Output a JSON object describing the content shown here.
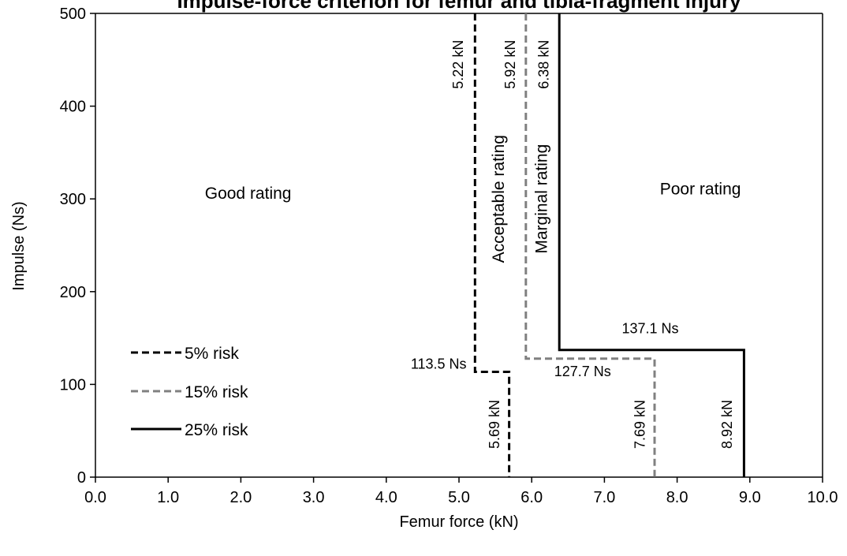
{
  "chart_data": {
    "type": "line",
    "title": "Impulse-force criterion for femur and tibia-fragment injury",
    "xlabel": "Femur force (kN)",
    "ylabel": "Impulse (Ns)",
    "xlim": [
      0,
      10
    ],
    "ylim": [
      0,
      500
    ],
    "xticks": [
      0,
      1,
      2,
      3,
      4,
      5,
      6,
      7,
      8,
      9,
      10
    ],
    "xtick_labels": [
      "0.0",
      "1.0",
      "2.0",
      "3.0",
      "4.0",
      "5.0",
      "6.0",
      "7.0",
      "8.0",
      "9.0",
      "10.0"
    ],
    "yticks": [
      0,
      100,
      200,
      300,
      400,
      500
    ],
    "ytick_labels": [
      "0",
      "100",
      "200",
      "300",
      "400",
      "500"
    ],
    "grid": false,
    "legend_position": "lower-left",
    "series": [
      {
        "name": "5% risk",
        "style": "dashed",
        "color": "#000000",
        "points": [
          [
            5.22,
            500
          ],
          [
            5.22,
            113.5
          ],
          [
            5.69,
            113.5
          ],
          [
            5.69,
            0
          ]
        ]
      },
      {
        "name": "15% risk",
        "style": "dashed",
        "color": "#808080",
        "points": [
          [
            5.92,
            500
          ],
          [
            5.92,
            127.7
          ],
          [
            7.69,
            127.7
          ],
          [
            7.69,
            0
          ]
        ]
      },
      {
        "name": "25% risk",
        "style": "solid",
        "color": "#000000",
        "points": [
          [
            6.38,
            500
          ],
          [
            6.38,
            137.1
          ],
          [
            8.92,
            137.1
          ],
          [
            8.92,
            0
          ]
        ]
      }
    ],
    "annotations": [
      {
        "key": "a_522",
        "text": "5.22 kN",
        "x": 5.0,
        "y": 445,
        "rotate": true
      },
      {
        "key": "a_592",
        "text": "5.92 kN",
        "x": 5.72,
        "y": 445,
        "rotate": true
      },
      {
        "key": "a_638",
        "text": "6.38 kN",
        "x": 6.18,
        "y": 445,
        "rotate": true
      },
      {
        "key": "a_1135",
        "text": "113.5 Ns",
        "x": 4.72,
        "y": 117,
        "rotate": false
      },
      {
        "key": "a_1277",
        "text": "127.7 Ns",
        "x": 6.7,
        "y": 109,
        "rotate": false
      },
      {
        "key": "a_1371",
        "text": "137.1 Ns",
        "x": 7.63,
        "y": 155,
        "rotate": false
      },
      {
        "key": "a_569",
        "text": "5.69 kN",
        "x": 5.5,
        "y": 57,
        "rotate": true
      },
      {
        "key": "a_769",
        "text": "7.69 kN",
        "x": 7.5,
        "y": 57,
        "rotate": true
      },
      {
        "key": "a_892",
        "text": "8.92 kN",
        "x": 8.7,
        "y": 57,
        "rotate": true
      }
    ],
    "region_labels": [
      {
        "key": "good",
        "text": "Good rating",
        "x": 2.1,
        "y": 300,
        "rotate": false
      },
      {
        "key": "acceptable",
        "text": "Acceptable rating",
        "x": 5.56,
        "y": 300,
        "rotate": true
      },
      {
        "key": "marginal",
        "text": "Marginal rating",
        "x": 6.15,
        "y": 300,
        "rotate": true
      },
      {
        "key": "poor",
        "text": "Poor rating",
        "x": 8.32,
        "y": 305,
        "rotate": false
      }
    ]
  }
}
